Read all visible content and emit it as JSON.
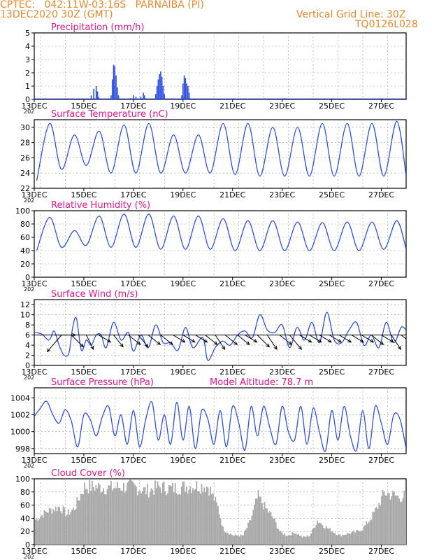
{
  "header": {
    "line1_left": "CPTEC:   042:11W-03:16S   PARNAIBA (PI)",
    "line2_left": "13DEC2020 30Z (GMT)",
    "line2_right": "Vertical Grid Line: 30Z",
    "line3_right": "TQ0126L028"
  },
  "colors": {
    "header": "#e8872a",
    "title": "#e0178a",
    "series": "#2f4fe0",
    "cloud": "#aaaaaa",
    "wind_arrow": "#000000",
    "grid": "#999999"
  },
  "x_axis": {
    "tick_labels": [
      "13DEC",
      "15DEC",
      "17DEC",
      "19DEC",
      "21DEC",
      "23DEC",
      "25DEC",
      "27DEC"
    ],
    "under_label": "202"
  },
  "chart_data": [
    {
      "type": "bar",
      "title": "Precipitation (mm/h)",
      "ylim": [
        0,
        5
      ],
      "yticks": [
        "0",
        "1",
        "2",
        "3",
        "4",
        "5"
      ],
      "x_unit": "days since 13DEC2020 00Z",
      "x_range": [
        0,
        15
      ],
      "points": [
        [
          1.2,
          0.05
        ],
        [
          2.0,
          0.05
        ],
        [
          2.3,
          0.3
        ],
        [
          2.4,
          0.8
        ],
        [
          2.5,
          1.0
        ],
        [
          2.55,
          0.6
        ],
        [
          2.6,
          0.2
        ],
        [
          3.1,
          0.3
        ],
        [
          3.15,
          1.5
        ],
        [
          3.2,
          2.6
        ],
        [
          3.25,
          2.5
        ],
        [
          3.3,
          1.8
        ],
        [
          3.35,
          0.9
        ],
        [
          3.4,
          0.3
        ],
        [
          3.9,
          0.1
        ],
        [
          4.0,
          0.3
        ],
        [
          4.1,
          0.2
        ],
        [
          4.3,
          0.2
        ],
        [
          4.4,
          0.5
        ],
        [
          4.45,
          0.3
        ],
        [
          4.9,
          0.4
        ],
        [
          4.95,
          1.0
        ],
        [
          5.0,
          1.5
        ],
        [
          5.05,
          1.9
        ],
        [
          5.1,
          2.1
        ],
        [
          5.15,
          1.7
        ],
        [
          5.2,
          1.0
        ],
        [
          5.25,
          0.4
        ],
        [
          5.95,
          0.3
        ],
        [
          6.0,
          1.2
        ],
        [
          6.05,
          1.8
        ],
        [
          6.1,
          1.6
        ],
        [
          6.15,
          1.2
        ],
        [
          6.2,
          1.0
        ],
        [
          6.25,
          0.5
        ],
        [
          6.8,
          0.05
        ],
        [
          8.5,
          0.05
        ],
        [
          10.1,
          0.1
        ],
        [
          13.0,
          0.05
        ]
      ]
    },
    {
      "type": "line",
      "title": "Surface Temperature (nC)",
      "ylim": [
        22,
        31
      ],
      "yticks": [
        "22",
        "24",
        "26",
        "28",
        "30"
      ],
      "x_range": [
        0,
        15
      ],
      "daily_max": [
        30.5,
        29.0,
        29.5,
        30.3,
        30.5,
        29.0,
        29.0,
        30.5,
        30.5,
        30.0,
        30.0,
        30.5,
        30.5,
        30.5,
        30.8
      ],
      "daily_min": [
        23.0,
        24.5,
        25.0,
        24.0,
        24.0,
        24.0,
        24.0,
        24.0,
        23.8,
        23.6,
        23.6,
        23.6,
        23.6,
        23.6,
        23.6
      ]
    },
    {
      "type": "line",
      "title": "Relative Humidity (%)",
      "ylim": [
        0,
        100
      ],
      "yticks": [
        "0",
        "20",
        "40",
        "60",
        "80",
        "100"
      ],
      "x_range": [
        0,
        15
      ],
      "daily_max": [
        90,
        70,
        92,
        95,
        95,
        92,
        92,
        88,
        85,
        85,
        83,
        82,
        83,
        83,
        85
      ],
      "daily_min": [
        40,
        45,
        48,
        45,
        45,
        42,
        42,
        42,
        40,
        40,
        40,
        40,
        40,
        40,
        42
      ]
    },
    {
      "type": "line",
      "title": "Surface Wind (m/s)",
      "ylim": [
        0,
        13
      ],
      "yticks": [
        "0",
        "2",
        "4",
        "6",
        "8",
        "10",
        "12"
      ],
      "x_range": [
        0,
        15
      ],
      "points": [
        [
          0,
          6.5
        ],
        [
          0.3,
          6.2
        ],
        [
          0.6,
          5.0
        ],
        [
          0.8,
          6.8
        ],
        [
          1.0,
          4.0
        ],
        [
          1.2,
          2.0
        ],
        [
          1.4,
          2.5
        ],
        [
          1.55,
          7.5
        ],
        [
          1.7,
          9.3
        ],
        [
          1.9,
          3.0
        ],
        [
          2.1,
          5.0
        ],
        [
          2.3,
          4.0
        ],
        [
          2.5,
          6.0
        ],
        [
          2.7,
          6.0
        ],
        [
          2.9,
          3.5
        ],
        [
          3.2,
          8.5
        ],
        [
          3.5,
          5.0
        ],
        [
          3.8,
          6.5
        ],
        [
          4.0,
          2.8
        ],
        [
          4.3,
          6.0
        ],
        [
          4.6,
          3.5
        ],
        [
          4.9,
          8.0
        ],
        [
          5.2,
          4.5
        ],
        [
          5.5,
          4.5
        ],
        [
          5.8,
          3.0
        ],
        [
          6.1,
          7.5
        ],
        [
          6.4,
          3.5
        ],
        [
          6.8,
          5.5
        ],
        [
          7.0,
          1.0
        ],
        [
          7.3,
          3.5
        ],
        [
          7.6,
          4.8
        ],
        [
          7.9,
          4.0
        ],
        [
          8.2,
          6.0
        ],
        [
          8.5,
          6.8
        ],
        [
          8.8,
          5.5
        ],
        [
          9.1,
          10.0
        ],
        [
          9.4,
          7.0
        ],
        [
          9.7,
          6.5
        ],
        [
          10.0,
          8.0
        ],
        [
          10.3,
          3.5
        ],
        [
          10.6,
          7.5
        ],
        [
          10.9,
          5.0
        ],
        [
          11.2,
          8.5
        ],
        [
          11.5,
          4.5
        ],
        [
          11.8,
          10.5
        ],
        [
          12.1,
          5.0
        ],
        [
          12.4,
          4.5
        ],
        [
          12.7,
          7.0
        ],
        [
          13.0,
          8.5
        ],
        [
          13.3,
          4.0
        ],
        [
          13.6,
          6.0
        ],
        [
          13.9,
          3.5
        ],
        [
          14.2,
          8.5
        ],
        [
          14.5,
          4.5
        ],
        [
          14.8,
          7.5
        ],
        [
          15.0,
          7.0
        ]
      ],
      "arrows": [
        [
          0.8,
          0.9,
          0.0
        ],
        [
          1.1,
          -0.6,
          0.7
        ],
        [
          1.5,
          0.5,
          0.5
        ],
        [
          2.1,
          0.3,
          0.6
        ],
        [
          2.6,
          0.5,
          0.3
        ],
        [
          3.2,
          0.4,
          0.5
        ],
        [
          3.8,
          0.5,
          0.4
        ],
        [
          4.2,
          0.4,
          0.5
        ],
        [
          4.6,
          0.5,
          0.4
        ],
        [
          5.1,
          0.5,
          0.4
        ],
        [
          5.6,
          0.5,
          0.3
        ],
        [
          6.0,
          0.5,
          0.3
        ],
        [
          6.5,
          0.5,
          0.3
        ],
        [
          6.9,
          0.5,
          0.4
        ],
        [
          7.3,
          0.4,
          0.6
        ],
        [
          7.7,
          0.5,
          0.4
        ],
        [
          8.2,
          0.5,
          0.4
        ],
        [
          8.5,
          0.5,
          0.3
        ],
        [
          9.0,
          0.5,
          0.5
        ],
        [
          9.4,
          0.4,
          0.6
        ],
        [
          9.9,
          0.5,
          0.4
        ],
        [
          10.3,
          0.5,
          0.6
        ],
        [
          10.7,
          0.5,
          0.3
        ],
        [
          11.1,
          0.5,
          0.3
        ],
        [
          11.5,
          0.5,
          0.3
        ],
        [
          11.9,
          0.5,
          0.3
        ],
        [
          12.3,
          0.5,
          0.3
        ],
        [
          12.8,
          0.5,
          0.3
        ],
        [
          13.2,
          0.5,
          0.3
        ],
        [
          13.6,
          0.5,
          0.4
        ],
        [
          14.0,
          0.5,
          0.3
        ],
        [
          14.4,
          0.4,
          0.6
        ],
        [
          14.8,
          0.5,
          0.4
        ]
      ]
    },
    {
      "type": "line",
      "title": "Surface Pressure (hPa)",
      "annotation": "Model Altitude: 78.7  m",
      "ylim": [
        997.4,
        1005.2
      ],
      "yticks": [
        "998",
        "1000",
        "1002",
        "1004"
      ],
      "x_range": [
        0,
        15
      ],
      "points": [
        [
          0,
          1001.8
        ],
        [
          0.25,
          1002.8
        ],
        [
          0.5,
          1003.6
        ],
        [
          0.75,
          1002.0
        ],
        [
          1.0,
          1001.0
        ],
        [
          1.25,
          1002.6
        ],
        [
          1.5,
          1001.2
        ],
        [
          1.75,
          998.2
        ],
        [
          2.0,
          1002.0
        ],
        [
          2.25,
          1001.5
        ],
        [
          2.5,
          999.5
        ],
        [
          2.75,
          1001.8
        ],
        [
          3.0,
          1003.0
        ],
        [
          3.25,
          999.5
        ],
        [
          3.5,
          1002.0
        ],
        [
          3.75,
          998.5
        ],
        [
          4.0,
          1002.5
        ],
        [
          4.25,
          998.2
        ],
        [
          4.5,
          1001.5
        ],
        [
          4.75,
          1003.5
        ],
        [
          5.0,
          999.0
        ],
        [
          5.25,
          1002.0
        ],
        [
          5.5,
          998.5
        ],
        [
          5.75,
          1003.5
        ],
        [
          6.0,
          999.0
        ],
        [
          6.25,
          1003.0
        ],
        [
          6.5,
          998.0
        ],
        [
          6.75,
          1002.5
        ],
        [
          7.0,
          1001.5
        ],
        [
          7.25,
          998.5
        ],
        [
          7.5,
          1002.5
        ],
        [
          7.75,
          998.2
        ],
        [
          8.0,
          1003.0
        ],
        [
          8.25,
          1001.0
        ],
        [
          8.5,
          997.8
        ],
        [
          8.75,
          1003.0
        ],
        [
          9.0,
          999.5
        ],
        [
          9.25,
          1003.0
        ],
        [
          9.5,
          1000.5
        ],
        [
          9.75,
          998.5
        ],
        [
          10.0,
          1003.0
        ],
        [
          10.25,
          1000.0
        ],
        [
          10.5,
          999.0
        ],
        [
          10.75,
          1003.0
        ],
        [
          11.0,
          998.5
        ],
        [
          11.25,
          1002.8
        ],
        [
          11.5,
          1000.0
        ],
        [
          11.75,
          997.7
        ],
        [
          12.0,
          1002.5
        ],
        [
          12.25,
          999.0
        ],
        [
          12.5,
          1003.0
        ],
        [
          12.75,
          999.5
        ],
        [
          13.0,
          997.8
        ],
        [
          13.25,
          1002.5
        ],
        [
          13.5,
          998.0
        ],
        [
          13.75,
          1003.0
        ],
        [
          14.0,
          1001.0
        ],
        [
          14.25,
          998.5
        ],
        [
          14.5,
          1002.0
        ],
        [
          14.75,
          1001.5
        ],
        [
          15.0,
          998.0
        ]
      ]
    },
    {
      "type": "bar",
      "title": "Cloud Cover (%)",
      "ylim": [
        0,
        100
      ],
      "yticks": [
        "0",
        "20",
        "40",
        "60",
        "80",
        "100"
      ],
      "x_range": [
        0,
        15
      ],
      "profile": [
        [
          0.0,
          40
        ],
        [
          0.5,
          55
        ],
        [
          1.0,
          62
        ],
        [
          1.3,
          50
        ],
        [
          1.6,
          60
        ],
        [
          2.0,
          95
        ],
        [
          2.5,
          95
        ],
        [
          3.0,
          93
        ],
        [
          3.5,
          95
        ],
        [
          4.0,
          95
        ],
        [
          4.5,
          88
        ],
        [
          5.0,
          95
        ],
        [
          5.5,
          92
        ],
        [
          6.0,
          95
        ],
        [
          6.5,
          97
        ],
        [
          7.0,
          96
        ],
        [
          7.4,
          60
        ],
        [
          7.6,
          25
        ],
        [
          8.0,
          15
        ],
        [
          8.4,
          15
        ],
        [
          8.7,
          40
        ],
        [
          9.0,
          80
        ],
        [
          9.3,
          60
        ],
        [
          9.6,
          45
        ],
        [
          9.9,
          20
        ],
        [
          10.2,
          15
        ],
        [
          10.5,
          20
        ],
        [
          10.8,
          12
        ],
        [
          11.1,
          15
        ],
        [
          11.4,
          40
        ],
        [
          11.7,
          30
        ],
        [
          12.0,
          22
        ],
        [
          12.3,
          15
        ],
        [
          12.6,
          18
        ],
        [
          12.9,
          20
        ],
        [
          13.2,
          25
        ],
        [
          13.5,
          40
        ],
        [
          13.8,
          60
        ],
        [
          14.1,
          85
        ],
        [
          14.4,
          82
        ],
        [
          14.7,
          78
        ],
        [
          15.0,
          80
        ]
      ]
    }
  ]
}
